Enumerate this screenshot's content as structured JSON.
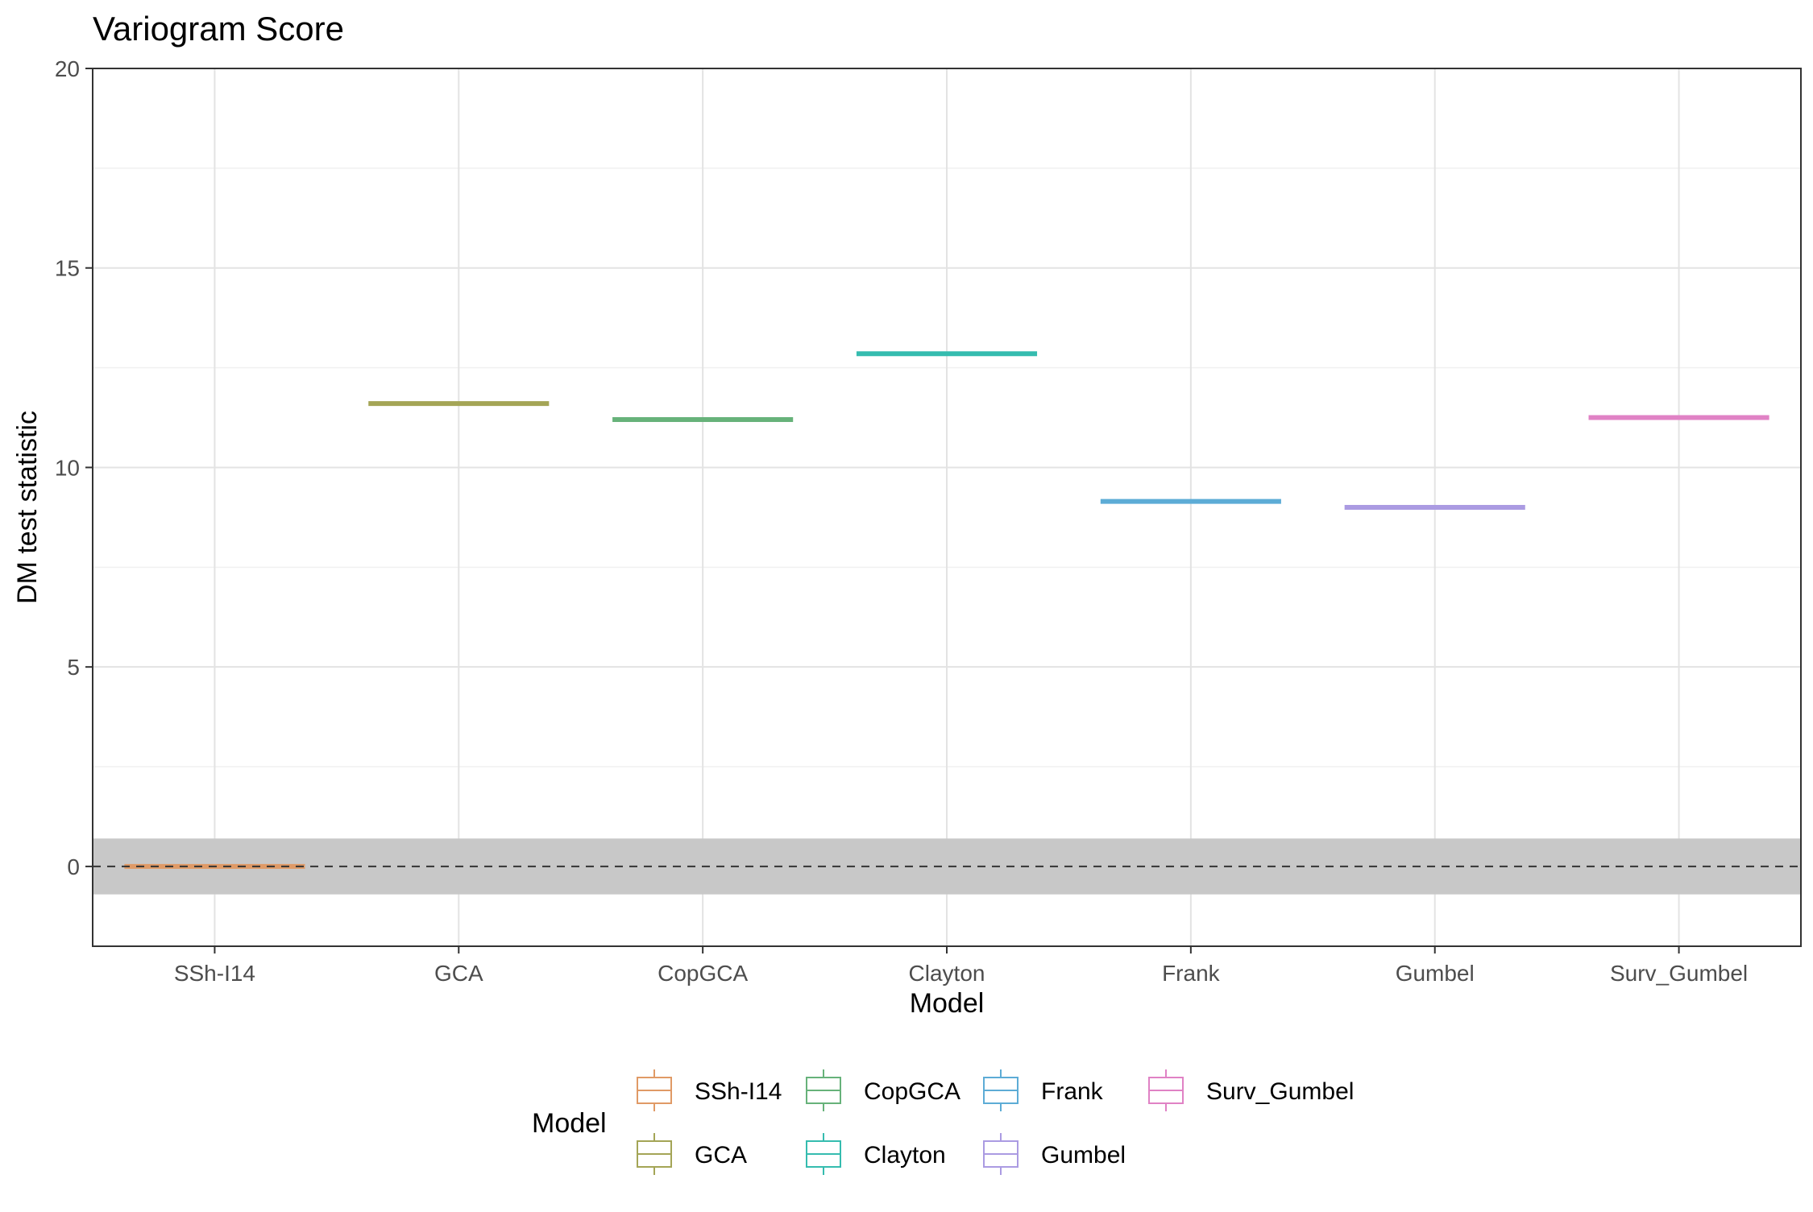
{
  "chart_data": {
    "type": "boxplot",
    "title": "Variogram Score",
    "xlabel": "Model",
    "ylabel": "DM test statistic",
    "ylim": [
      -2,
      20
    ],
    "yticks": [
      0,
      5,
      10,
      15,
      20
    ],
    "ytick_labels": [
      "0",
      "5",
      "10",
      "15",
      "20"
    ],
    "grid": true,
    "reference_line": {
      "y": 0,
      "style": "dashed",
      "color": "#333333"
    },
    "reference_band": {
      "ymin": -0.7,
      "ymax": 0.7,
      "color": "#c8c8c8"
    },
    "categories": [
      "SSh-I14",
      "GCA",
      "CopGCA",
      "Clayton",
      "Frank",
      "Gumbel",
      "Surv_Gumbel"
    ],
    "values": [
      0,
      11.6,
      11.2,
      12.85,
      9.15,
      9.0,
      11.25
    ],
    "colors": [
      "#E09A66",
      "#A4A556",
      "#67B27A",
      "#35BCAF",
      "#5DACD6",
      "#AB9BE2",
      "#E082C5"
    ],
    "legend": {
      "title": "Model",
      "placement": "bottom",
      "entries": [
        "SSh-I14",
        "GCA",
        "CopGCA",
        "Clayton",
        "Frank",
        "Gumbel",
        "Surv_Gumbel"
      ]
    }
  }
}
